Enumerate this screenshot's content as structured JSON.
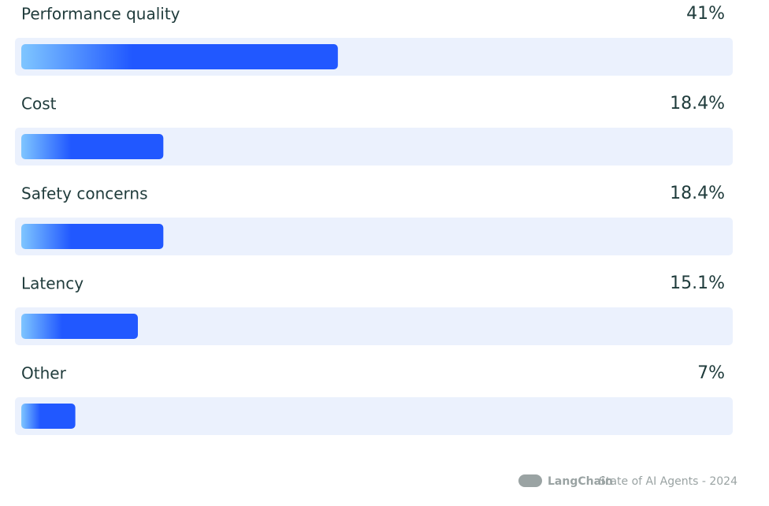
{
  "chart_data": {
    "type": "hbar",
    "categories": [
      "Performance quality",
      "Cost",
      "Safety concerns",
      "Latency",
      "Other"
    ],
    "values": [
      41,
      18.4,
      18.4,
      15.1,
      7
    ],
    "value_labels": [
      "41%",
      "18.4%",
      "18.4%",
      "15.1%",
      "7%"
    ],
    "color": "#2158ff"
  },
  "footer": {
    "brand": "LangChain",
    "text": "State of AI Agents - 2024"
  }
}
